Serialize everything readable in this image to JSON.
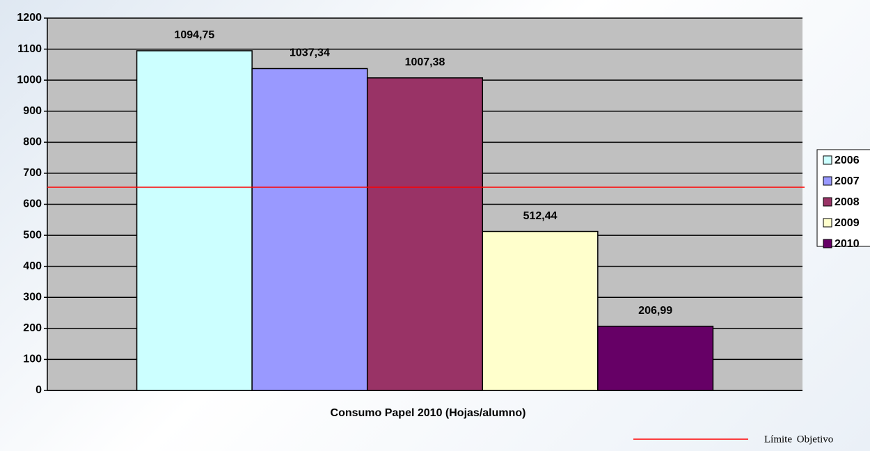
{
  "chart_data": {
    "type": "bar",
    "categories": [
      "Consumo Papel 2010 (Hojas/alumno)"
    ],
    "series": [
      {
        "name": "2006",
        "color": "#CCFFFF",
        "values": [
          1094.75
        ],
        "value_labels": [
          "1094,75"
        ]
      },
      {
        "name": "2007",
        "color": "#9999FF",
        "values": [
          1037.34
        ],
        "value_labels": [
          "1037,34"
        ]
      },
      {
        "name": "2008",
        "color": "#993366",
        "values": [
          1007.38
        ],
        "value_labels": [
          "1007,38"
        ]
      },
      {
        "name": "2009",
        "color": "#FFFFCC",
        "values": [
          512.44
        ],
        "value_labels": [
          "512,44"
        ]
      },
      {
        "name": "2010",
        "color": "#660066",
        "values": [
          206.99
        ],
        "value_labels": [
          "206,99"
        ]
      }
    ],
    "ylim": [
      0,
      1200
    ],
    "yticks": [
      0,
      100,
      200,
      300,
      400,
      500,
      600,
      700,
      800,
      900,
      1000,
      1100,
      1200
    ],
    "grid": true,
    "plot_background": "#C0C0C0",
    "legend": "right",
    "reference_line": {
      "value": 655,
      "label": "Límite Objetivo",
      "color": "#FF0000"
    }
  }
}
